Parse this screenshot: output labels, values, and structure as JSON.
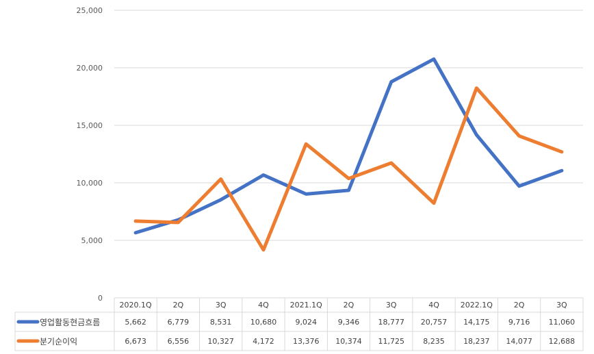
{
  "chart_data": {
    "type": "line",
    "title": "",
    "xlabel": "",
    "ylabel": "",
    "ylim": [
      0,
      25000
    ],
    "y_ticks": [
      "0",
      "5,000",
      "10,000",
      "15,000",
      "20,000",
      "25,000"
    ],
    "categories": [
      "2020.1Q",
      "2Q",
      "3Q",
      "4Q",
      "2021.1Q",
      "2Q",
      "3Q",
      "4Q",
      "2022.1Q",
      "2Q",
      "3Q"
    ],
    "grid": true,
    "legend": "data-table",
    "series": [
      {
        "name": "영업활동현금흐름",
        "color": "#4472C4",
        "values": [
          5662,
          6779,
          8531,
          10680,
          9024,
          9346,
          18777,
          20757,
          14175,
          9716,
          11060
        ],
        "labels": [
          "5,662",
          "6,779",
          "8,531",
          "10,680",
          "9,024",
          "9,346",
          "18,777",
          "20,757",
          "14,175",
          "9,716",
          "11,060"
        ]
      },
      {
        "name": "분기순이익",
        "color": "#ED7D31",
        "values": [
          6673,
          6556,
          10327,
          4172,
          13376,
          10374,
          11725,
          8235,
          18237,
          14077,
          12688
        ],
        "labels": [
          "6,673",
          "6,556",
          "10,327",
          "4,172",
          "13,376",
          "10,374",
          "11,725",
          "8,235",
          "18,237",
          "14,077",
          "12,688"
        ]
      }
    ]
  }
}
